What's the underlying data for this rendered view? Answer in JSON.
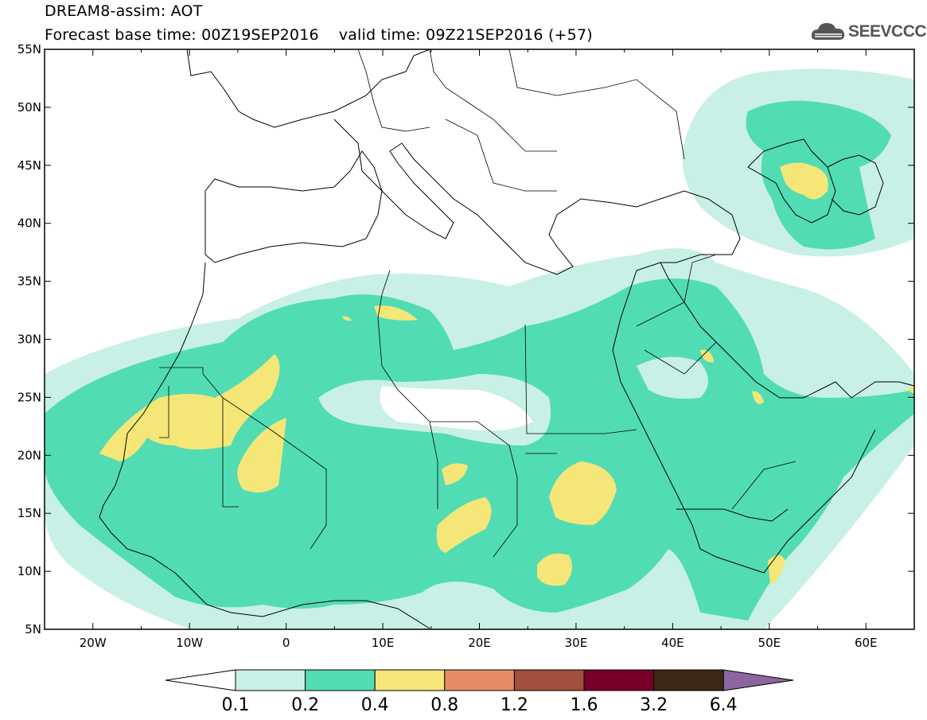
{
  "header": {
    "line1": "DREAM8-assim: AOT",
    "line2": "Forecast base time: 00Z19SEP2016    valid time: 09Z21SEP2016 (+57)"
  },
  "logo": {
    "text": "SEEVCCC",
    "icon": "cloud-icon"
  },
  "map": {
    "lon_range": [
      -25,
      65
    ],
    "lat_range": [
      5,
      55
    ],
    "lat_ticks": [
      {
        "value": 55,
        "label": "55N"
      },
      {
        "value": 50,
        "label": "50N"
      },
      {
        "value": 45,
        "label": "45N"
      },
      {
        "value": 40,
        "label": "40N"
      },
      {
        "value": 35,
        "label": "35N"
      },
      {
        "value": 30,
        "label": "30N"
      },
      {
        "value": 25,
        "label": "25N"
      },
      {
        "value": 20,
        "label": "20N"
      },
      {
        "value": 15,
        "label": "15N"
      },
      {
        "value": 10,
        "label": "10N"
      },
      {
        "value": 5,
        "label": "5N"
      }
    ],
    "lon_ticks": [
      {
        "value": -20,
        "label": "20W"
      },
      {
        "value": -10,
        "label": "10W"
      },
      {
        "value": 0,
        "label": "0"
      },
      {
        "value": 10,
        "label": "10E"
      },
      {
        "value": 20,
        "label": "20E"
      },
      {
        "value": 30,
        "label": "30E"
      },
      {
        "value": 40,
        "label": "40E"
      },
      {
        "value": 50,
        "label": "50E"
      },
      {
        "value": 60,
        "label": "60E"
      }
    ]
  },
  "colorbar": {
    "labels": [
      "0.1",
      "0.2",
      "0.4",
      "0.8",
      "1.2",
      "1.6",
      "3.2",
      "6.4"
    ],
    "colors": [
      "#ffffff",
      "#c8f0e6",
      "#52dcb4",
      "#f5e678",
      "#e68c64",
      "#a0503c",
      "#780028",
      "#3c2814",
      "#8c64a0"
    ]
  }
}
